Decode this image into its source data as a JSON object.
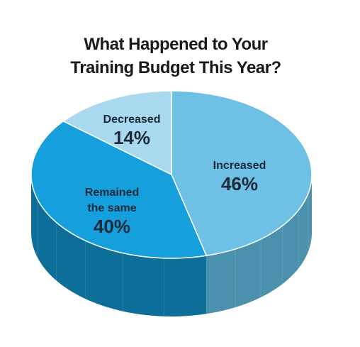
{
  "chart_data": {
    "type": "pie",
    "title": [
      "What Happened to Your",
      "Training Budget This Year?"
    ],
    "slices": [
      {
        "label": [
          "Increased"
        ],
        "value": 46,
        "value_label": "46%",
        "color": "#6ec1e4",
        "side_color": "#4b90ad"
      },
      {
        "label": [
          "Remained",
          "the same"
        ],
        "value": 40,
        "value_label": "40%",
        "color": "#159fdc",
        "side_color": "#0d6e9a"
      },
      {
        "label": [
          "Decreased"
        ],
        "value": 14,
        "value_label": "14%",
        "color": "#a9d9ef",
        "side_color": "#7fb3cb"
      }
    ]
  }
}
